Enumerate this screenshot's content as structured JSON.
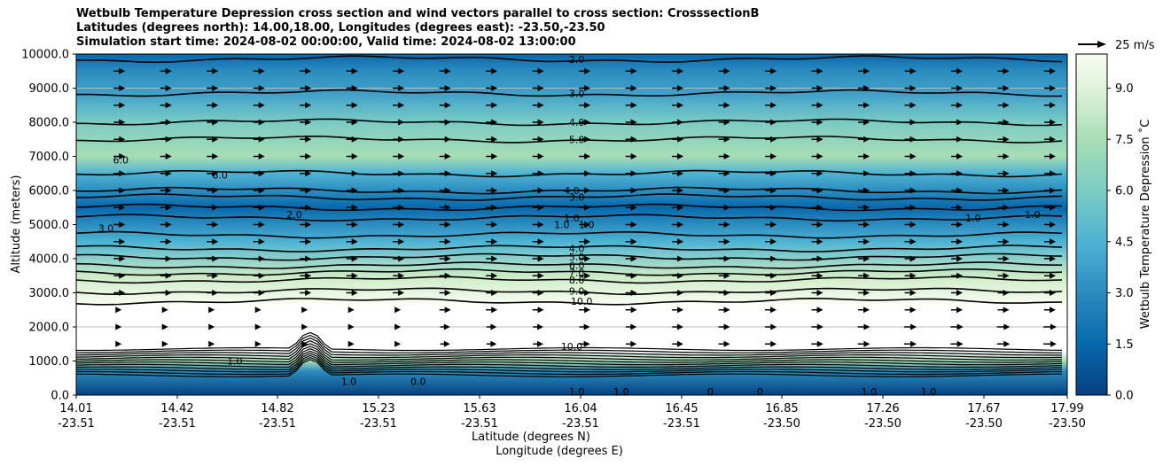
{
  "chart_data": {
    "type": "contour",
    "title_lines": [
      "Wetbulb Temperature Depression cross section and wind vectors parallel to cross section: CrosssectionB",
      "Latitudes (degrees north): 14.00,18.00, Longitudes (degrees east): -23.50,-23.50",
      "Simulation start time: 2024-08-02 00:00:00, Valid time: 2024-08-02 13:00:00"
    ],
    "ylabel": "Altitude (meters)",
    "xlabel_lat": "Latitude (degrees N)",
    "xlabel_lon": "Longitude (degrees E)",
    "ylim": [
      0,
      10000
    ],
    "y_ticks": [
      "0.0",
      "1000.0",
      "2000.0",
      "3000.0",
      "4000.0",
      "5000.0",
      "6000.0",
      "7000.0",
      "8000.0",
      "9000.0",
      "10000.0"
    ],
    "x_ticks_lat": [
      "14.01",
      "14.42",
      "14.82",
      "15.23",
      "15.63",
      "16.04",
      "16.45",
      "16.85",
      "17.26",
      "17.67",
      "17.99"
    ],
    "x_ticks_lon": [
      "-23.51",
      "-23.51",
      "-23.51",
      "-23.51",
      "-23.51",
      "-23.51",
      "-23.51",
      "-23.50",
      "-23.50",
      "-23.50",
      "-23.50"
    ],
    "colorbar": {
      "label": "Wetbulb Temperature Depression ˚C",
      "range": [
        0,
        10
      ],
      "ticks": [
        "0.0",
        "1.5",
        "3.0",
        "4.5",
        "6.0",
        "7.5",
        "9.0"
      ]
    },
    "wind_key_label": "25 m/s",
    "contour_labels": [
      {
        "text": "2.0",
        "alt": 9850,
        "frac": 0.505
      },
      {
        "text": "3.0",
        "alt": 8850,
        "frac": 0.505
      },
      {
        "text": "4.0",
        "alt": 8000,
        "frac": 0.505
      },
      {
        "text": "5.0",
        "alt": 7500,
        "frac": 0.505
      },
      {
        "text": "4.0",
        "alt": 6000,
        "frac": 0.5
      },
      {
        "text": "3.0",
        "alt": 5800,
        "frac": 0.505
      },
      {
        "text": "1.0",
        "alt": 5200,
        "frac": 0.5
      },
      {
        "text": "1.0",
        "alt": 5000,
        "frac": 0.49
      },
      {
        "text": "1.0",
        "alt": 5000,
        "frac": 0.515
      },
      {
        "text": "4.0",
        "alt": 4300,
        "frac": 0.505
      },
      {
        "text": "5.0",
        "alt": 4050,
        "frac": 0.505
      },
      {
        "text": "6.0",
        "alt": 3800,
        "frac": 0.505
      },
      {
        "text": "7.0",
        "alt": 3600,
        "frac": 0.505
      },
      {
        "text": "8.0",
        "alt": 3380,
        "frac": 0.505
      },
      {
        "text": "9.0",
        "alt": 3050,
        "frac": 0.505
      },
      {
        "text": "10.0",
        "alt": 2750,
        "frac": 0.51
      },
      {
        "text": "10.0",
        "alt": 1430,
        "frac": 0.5
      },
      {
        "text": "1.0",
        "alt": 100,
        "frac": 0.505
      },
      {
        "text": "0.0",
        "alt": 400,
        "frac": 0.345
      },
      {
        "text": "1.0",
        "alt": 400,
        "frac": 0.275
      },
      {
        "text": "1.0",
        "alt": 1000,
        "frac": 0.16
      },
      {
        "text": "3.0",
        "alt": 4900,
        "frac": 0.03
      },
      {
        "text": "6.0",
        "alt": 6900,
        "frac": 0.045
      },
      {
        "text": "6.0",
        "alt": 6450,
        "frac": 0.145
      },
      {
        "text": "2.0",
        "alt": 5300,
        "frac": 0.22
      },
      {
        "text": "1.0",
        "alt": 5200,
        "frac": 0.905
      },
      {
        "text": "1.0",
        "alt": 5300,
        "frac": 0.965
      },
      {
        "text": "1.0",
        "alt": 100,
        "frac": 0.55
      },
      {
        "text": "0",
        "alt": 100,
        "frac": 0.64
      },
      {
        "text": "0",
        "alt": 100,
        "frac": 0.69
      },
      {
        "text": "1.0",
        "alt": 100,
        "frac": 0.8
      },
      {
        "text": "1.0",
        "alt": 100,
        "frac": 0.86
      }
    ]
  }
}
